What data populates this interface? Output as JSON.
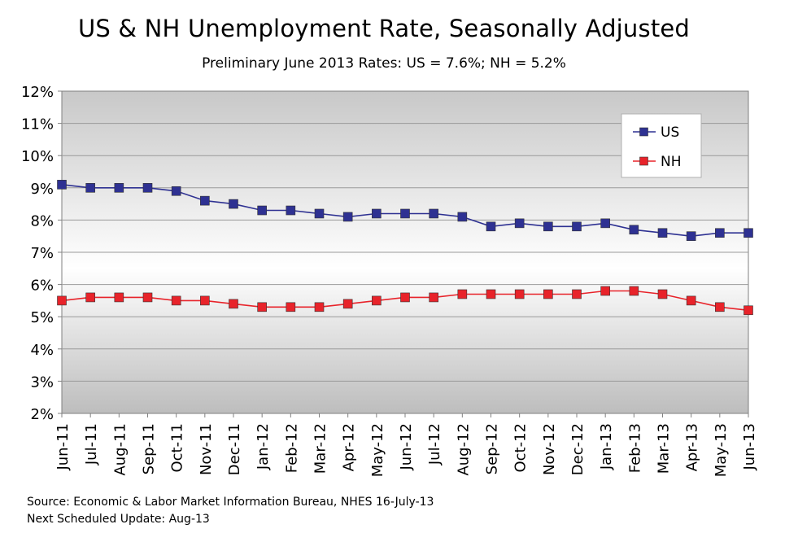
{
  "chart_data": {
    "type": "line",
    "title": "US & NH Unemployment Rate, Seasonally Adjusted",
    "subtitle": "Preliminary June 2013 Rates: US = 7.6%; NH = 5.2%",
    "categories": [
      "Jun-11",
      "Jul-11",
      "Aug-11",
      "Sep-11",
      "Oct-11",
      "Nov-11",
      "Dec-11",
      "Jan-12",
      "Feb-12",
      "Mar-12",
      "Apr-12",
      "May-12",
      "Jun-12",
      "Jul-12",
      "Aug-12",
      "Sep-12",
      "Oct-12",
      "Nov-12",
      "Dec-12",
      "Jan-13",
      "Feb-13",
      "Mar-13",
      "Apr-13",
      "May-13",
      "Jun-13"
    ],
    "series": [
      {
        "name": "US",
        "color": "#2e3192",
        "values": [
          9.1,
          9.0,
          9.0,
          9.0,
          8.9,
          8.6,
          8.5,
          8.3,
          8.3,
          8.2,
          8.1,
          8.2,
          8.2,
          8.2,
          8.1,
          7.8,
          7.9,
          7.8,
          7.8,
          7.9,
          7.7,
          7.6,
          7.5,
          7.6,
          7.6
        ]
      },
      {
        "name": "NH",
        "color": "#e8232a",
        "values": [
          5.5,
          5.6,
          5.6,
          5.6,
          5.5,
          5.5,
          5.4,
          5.3,
          5.3,
          5.3,
          5.4,
          5.5,
          5.6,
          5.6,
          5.7,
          5.7,
          5.7,
          5.7,
          5.7,
          5.8,
          5.8,
          5.7,
          5.5,
          5.3,
          5.2
        ]
      }
    ],
    "ylim": [
      2,
      12
    ],
    "yticks": [
      2,
      3,
      4,
      5,
      6,
      7,
      8,
      9,
      10,
      11,
      12
    ],
    "ytick_labels": [
      "2%",
      "3%",
      "4%",
      "5%",
      "6%",
      "7%",
      "8%",
      "9%",
      "10%",
      "11%",
      "12%"
    ],
    "xlabel": "",
    "ylabel": "",
    "grid": true,
    "legend": "top-right"
  },
  "footer": {
    "source": "Source: Economic & Labor Market Information Bureau, NHES  16-July-13",
    "update": "Next Scheduled Update:  Aug-13"
  }
}
